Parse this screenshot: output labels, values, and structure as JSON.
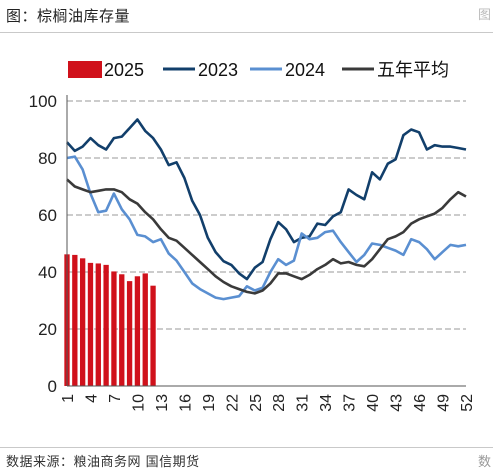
{
  "figure": {
    "title": "图：棕榈油库存量",
    "corner_mark": "图",
    "source": "数据来源：粮油商务网  国信期货",
    "source_tail": "数"
  },
  "colors": {
    "s2025": "#d0111b",
    "s2023": "#123f6b",
    "s2024": "#5a8fd1",
    "avg": "#3a3a3a",
    "grid": "#9a9a9a"
  },
  "chart_data": {
    "type": "bar",
    "ylim": [
      0,
      100
    ],
    "yticks": [
      "0",
      "20",
      "40",
      "60",
      "80",
      "100"
    ],
    "xlim": [
      1,
      52
    ],
    "xticks": [
      "1",
      "4",
      "7",
      "10",
      "13",
      "16",
      "19",
      "22",
      "25",
      "28",
      "31",
      "34",
      "37",
      "40",
      "43",
      "46",
      "49",
      "52"
    ],
    "grid": "horizontal dashed",
    "legend_position": "top",
    "series": [
      {
        "name": "2025",
        "kind": "bar",
        "x": [
          1,
          2,
          3,
          4,
          5,
          6,
          7,
          8,
          9,
          10,
          11,
          12
        ],
        "values": [
          46.2,
          46.0,
          44.8,
          43.2,
          43.0,
          42.5,
          40.2,
          39.2,
          36.8,
          38.5,
          39.5,
          35.2
        ]
      },
      {
        "name": "2023",
        "kind": "line",
        "x": [
          1,
          2,
          3,
          4,
          5,
          6,
          7,
          8,
          9,
          10,
          11,
          12,
          13,
          14,
          15,
          16,
          17,
          18,
          19,
          20,
          21,
          22,
          23,
          24,
          25,
          26,
          27,
          28,
          29,
          30,
          31,
          32,
          33,
          34,
          35,
          36,
          37,
          38,
          39,
          40,
          41,
          42,
          43,
          44,
          45,
          46,
          47,
          48,
          49,
          50,
          51,
          52
        ],
        "values": [
          85.5,
          82.5,
          84.0,
          87.0,
          84.5,
          83.0,
          87.0,
          87.5,
          90.5,
          93.5,
          89.5,
          87.0,
          83.0,
          77.5,
          78.5,
          73.0,
          65.0,
          60.0,
          52.0,
          47.0,
          43.8,
          42.5,
          39.5,
          37.5,
          41.5,
          43.5,
          51.5,
          57.5,
          55.0,
          50.5,
          52.0,
          52.5,
          57.0,
          56.5,
          59.5,
          61.0,
          69.0,
          67.0,
          65.5,
          75.0,
          72.5,
          78.0,
          79.5,
          88.0,
          90.0,
          89.0,
          83.0,
          84.5,
          84.0,
          84.0,
          83.5,
          83.0
        ]
      },
      {
        "name": "2024",
        "kind": "line",
        "x": [
          1,
          2,
          3,
          4,
          5,
          6,
          7,
          8,
          9,
          10,
          11,
          12,
          13,
          14,
          15,
          16,
          17,
          18,
          19,
          20,
          21,
          22,
          23,
          24,
          25,
          26,
          27,
          28,
          29,
          30,
          31,
          32,
          33,
          34,
          35,
          36,
          37,
          38,
          39,
          40,
          41,
          42,
          43,
          44,
          45,
          46,
          47,
          48,
          49,
          50,
          51,
          52
        ],
        "values": [
          80.0,
          80.5,
          76.0,
          67.5,
          61.0,
          61.5,
          67.5,
          62.0,
          58.5,
          53.0,
          52.5,
          50.5,
          51.5,
          46.5,
          44.0,
          40.0,
          36.0,
          34.0,
          32.5,
          31.0,
          30.5,
          31.0,
          31.5,
          35.0,
          33.5,
          34.5,
          40.0,
          44.5,
          42.5,
          44.0,
          53.5,
          51.5,
          52.0,
          54.0,
          54.5,
          50.5,
          47.0,
          43.5,
          46.0,
          50.0,
          49.5,
          48.5,
          47.5,
          46.0,
          51.5,
          50.5,
          48.0,
          44.5,
          47.0,
          49.5,
          49.0,
          49.5
        ]
      },
      {
        "name": "五年平均",
        "kind": "line",
        "x": [
          1,
          2,
          3,
          4,
          5,
          6,
          7,
          8,
          9,
          10,
          11,
          12,
          13,
          14,
          15,
          16,
          17,
          18,
          19,
          20,
          21,
          22,
          23,
          24,
          25,
          26,
          27,
          28,
          29,
          30,
          31,
          32,
          33,
          34,
          35,
          36,
          37,
          38,
          39,
          40,
          41,
          42,
          43,
          44,
          45,
          46,
          47,
          48,
          49,
          50,
          51,
          52
        ],
        "values": [
          72.5,
          70.0,
          69.0,
          68.0,
          68.5,
          69.0,
          69.0,
          68.0,
          65.5,
          64.0,
          61.0,
          58.5,
          55.0,
          52.0,
          51.0,
          48.5,
          46.0,
          43.5,
          41.0,
          38.5,
          36.5,
          35.0,
          34.0,
          33.0,
          32.5,
          33.5,
          36.0,
          39.5,
          39.5,
          38.5,
          37.5,
          39.0,
          41.0,
          42.5,
          44.5,
          43.0,
          43.5,
          42.5,
          42.0,
          44.5,
          48.0,
          51.5,
          52.5,
          54.0,
          57.0,
          58.5,
          59.5,
          60.5,
          62.5,
          65.5,
          68.0,
          66.5
        ]
      }
    ]
  }
}
